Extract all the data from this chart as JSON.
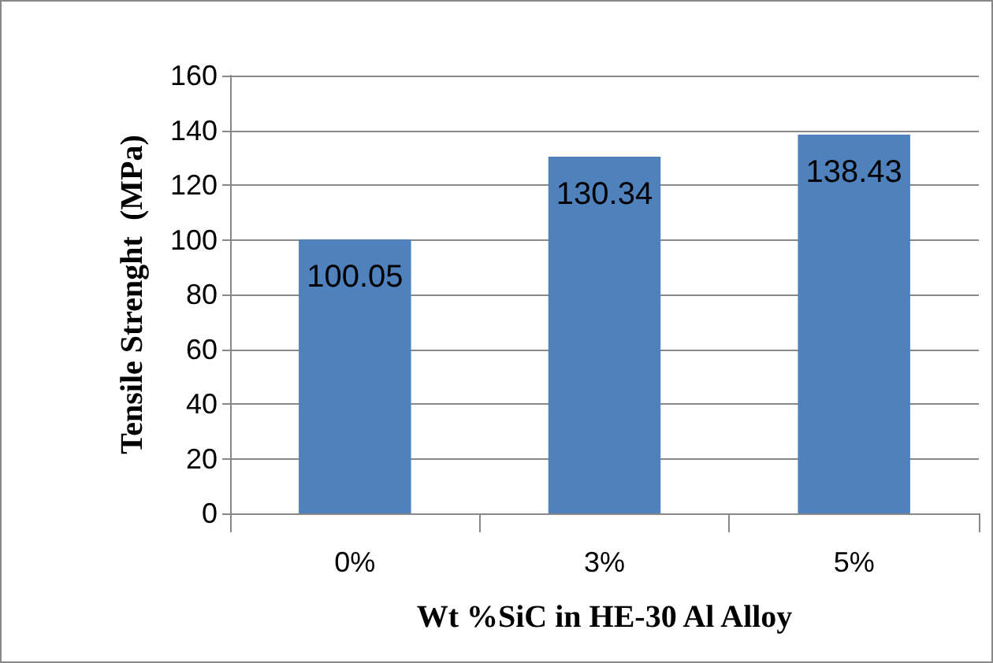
{
  "chart_data": {
    "type": "bar",
    "xlabel": "Wt %SiC in HE-30 Al Alloy",
    "ylabel": "Tensile Strenght  (MPa)",
    "categories": [
      "0%",
      "3%",
      "5%"
    ],
    "values": [
      100.05,
      130.34,
      138.43
    ],
    "color": "#4f81bd",
    "ylim": [
      0,
      160
    ],
    "yticks": [
      0,
      20,
      40,
      60,
      80,
      100,
      120,
      140,
      160
    ],
    "grid": "y",
    "data_labels": true
  }
}
